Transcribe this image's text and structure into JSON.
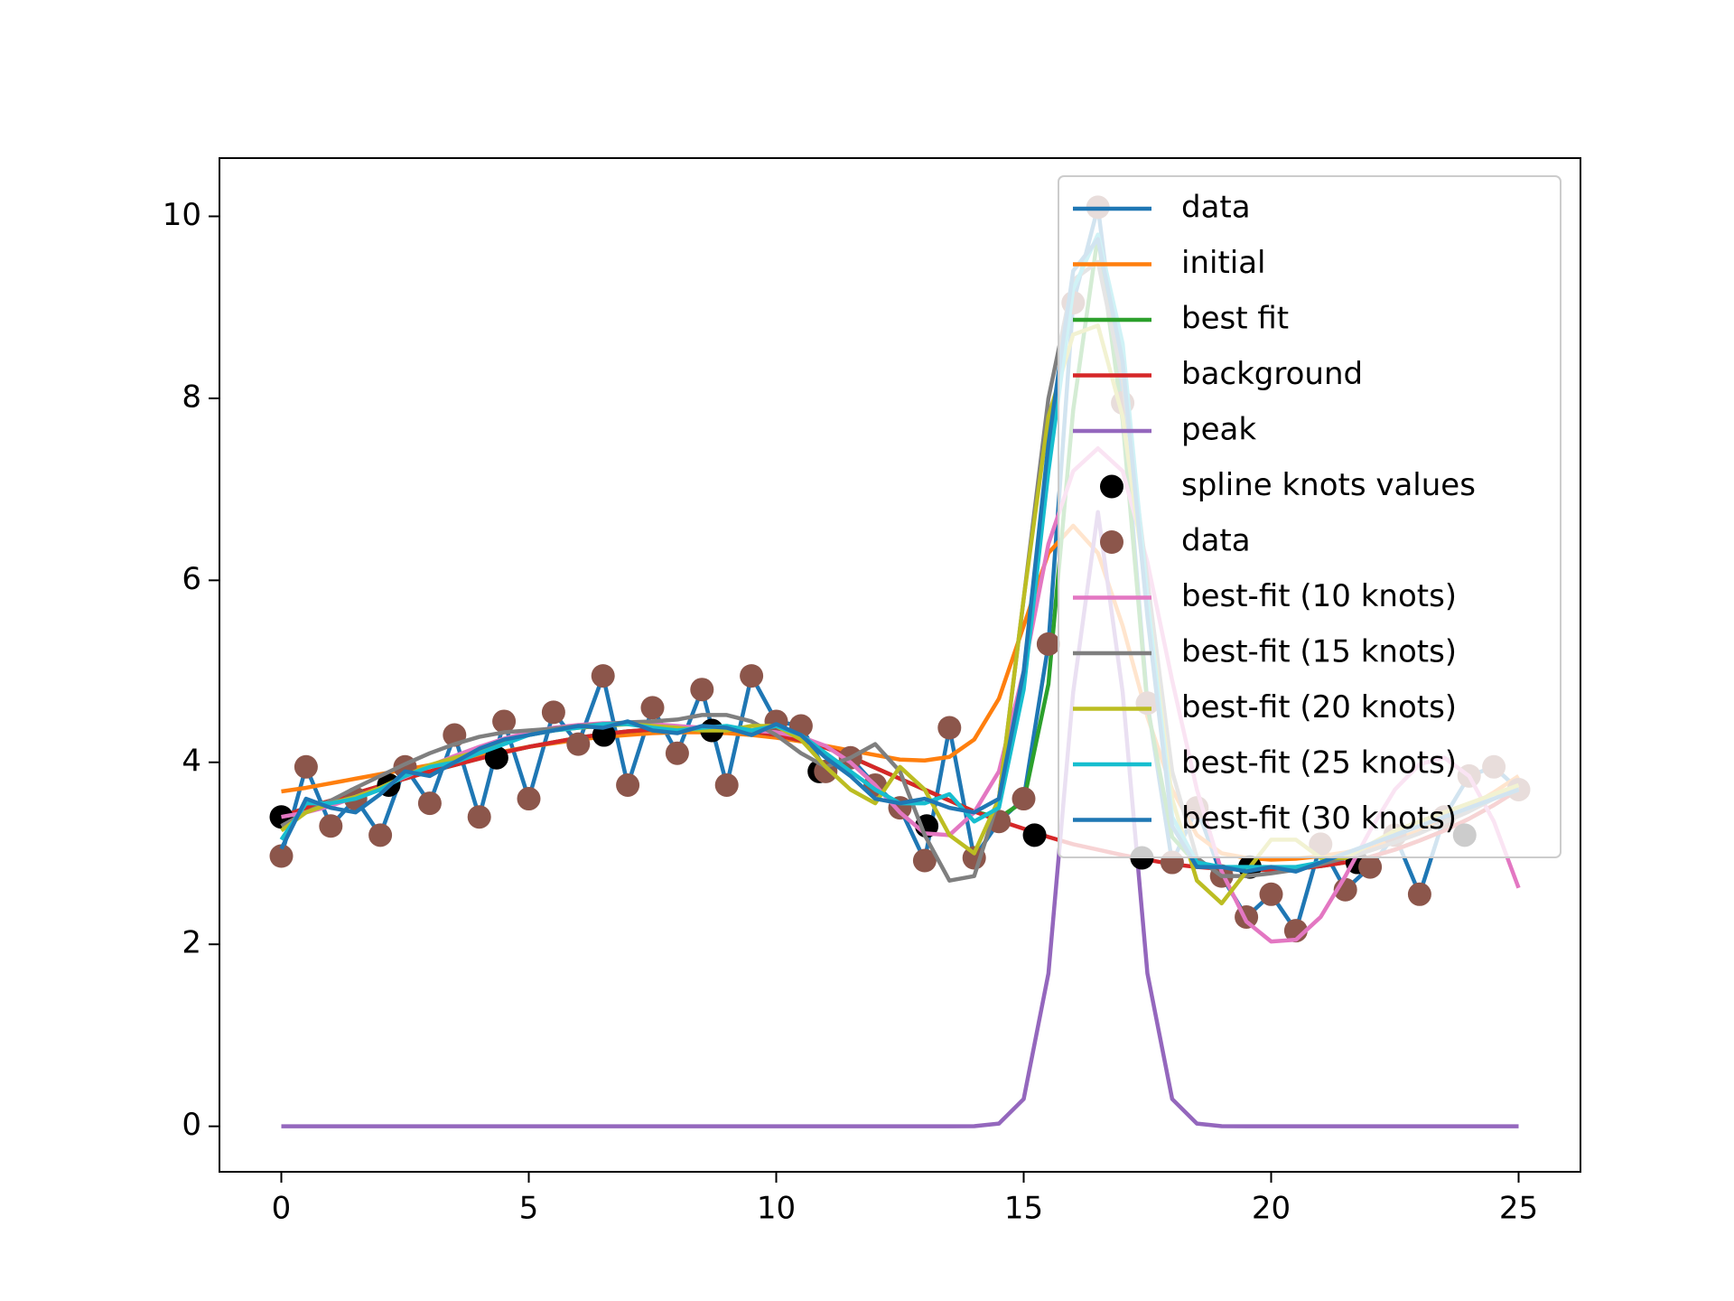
{
  "chart_data": {
    "type": "line",
    "x": [
      0,
      0.5,
      1,
      1.5,
      2,
      2.5,
      3,
      3.5,
      4,
      4.5,
      5,
      5.5,
      6,
      6.5,
      7,
      7.5,
      8,
      8.5,
      9,
      9.5,
      10,
      10.5,
      11,
      11.5,
      12,
      12.5,
      13,
      13.5,
      14,
      14.5,
      15,
      15.5,
      16,
      16.5,
      17,
      17.5,
      18,
      18.5,
      19,
      19.5,
      20,
      20.5,
      21,
      21.5,
      22,
      22.5,
      23,
      23.5,
      24,
      24.5,
      25
    ],
    "series": [
      {
        "name": "data",
        "color": "#1f77b4",
        "style": "line",
        "values": [
          2.97,
          3.95,
          3.3,
          3.6,
          3.2,
          3.95,
          3.55,
          4.3,
          3.4,
          4.45,
          3.6,
          4.55,
          4.2,
          4.95,
          3.75,
          4.6,
          4.1,
          4.8,
          3.75,
          4.95,
          4.45,
          4.4,
          3.9,
          4.05,
          3.75,
          3.5,
          2.92,
          4.38,
          2.95,
          3.35,
          3.6,
          5.3,
          9.05,
          10.1,
          7.95,
          4.65,
          2.9,
          3.5,
          2.75,
          2.3,
          2.55,
          2.15,
          3.1,
          2.6,
          2.85,
          3.2,
          2.55,
          3.4,
          3.85,
          3.95,
          3.7
        ]
      },
      {
        "name": "initial",
        "color": "#ff7f0e",
        "style": "line",
        "values": [
          3.68,
          3.72,
          3.77,
          3.82,
          3.87,
          3.92,
          3.97,
          4.02,
          4.07,
          4.12,
          4.17,
          4.21,
          4.25,
          4.28,
          4.3,
          4.32,
          4.33,
          4.33,
          4.32,
          4.3,
          4.27,
          4.23,
          4.18,
          4.13,
          4.08,
          4.03,
          4.02,
          4.06,
          4.25,
          4.7,
          5.5,
          6.3,
          6.6,
          6.3,
          5.5,
          4.5,
          3.7,
          3.2,
          3.0,
          2.95,
          2.93,
          2.94,
          2.97,
          3.01,
          3.07,
          3.15,
          3.25,
          3.37,
          3.51,
          3.67,
          3.85
        ]
      },
      {
        "name": "best fit",
        "color": "#2ca02c",
        "style": "line",
        "values": [
          3.4,
          3.5,
          3.58,
          3.66,
          3.74,
          3.82,
          3.9,
          3.97,
          4.04,
          4.11,
          4.17,
          4.22,
          4.27,
          4.31,
          4.34,
          4.36,
          4.37,
          4.37,
          4.36,
          4.34,
          4.3,
          4.24,
          4.16,
          4.06,
          3.94,
          3.82,
          3.7,
          3.58,
          3.46,
          3.39,
          3.57,
          4.86,
          7.87,
          9.79,
          7.75,
          4.61,
          3.18,
          2.88,
          2.83,
          2.82,
          2.82,
          2.83,
          2.86,
          2.9,
          2.96,
          3.04,
          3.14,
          3.25,
          3.38,
          3.53,
          3.7
        ]
      },
      {
        "name": "background",
        "color": "#d62728",
        "style": "line",
        "values": [
          3.4,
          3.5,
          3.58,
          3.66,
          3.74,
          3.82,
          3.9,
          3.97,
          4.04,
          4.11,
          4.17,
          4.22,
          4.27,
          4.31,
          4.34,
          4.36,
          4.37,
          4.37,
          4.36,
          4.34,
          4.3,
          4.24,
          4.16,
          4.06,
          3.94,
          3.82,
          3.7,
          3.58,
          3.46,
          3.36,
          3.27,
          3.18,
          3.1,
          3.04,
          2.98,
          2.93,
          2.88,
          2.85,
          2.83,
          2.82,
          2.82,
          2.83,
          2.86,
          2.9,
          2.96,
          3.04,
          3.14,
          3.25,
          3.38,
          3.53,
          3.7
        ]
      },
      {
        "name": "peak",
        "color": "#9467bd",
        "style": "line",
        "values": [
          0,
          0,
          0,
          0,
          0,
          0,
          0,
          0,
          0,
          0,
          0,
          0,
          0,
          0,
          0,
          0,
          0,
          0,
          0,
          0,
          0,
          0,
          0,
          0,
          0,
          0,
          0,
          0,
          0.001,
          0.03,
          0.3,
          1.68,
          4.77,
          6.75,
          4.77,
          1.68,
          0.3,
          0.03,
          0.001,
          0,
          0,
          0,
          0,
          0,
          0,
          0,
          0,
          0,
          0,
          0,
          0
        ]
      },
      {
        "name": "spline knots values",
        "color": "#000000",
        "style": "markers",
        "x": [
          0,
          2.17,
          4.35,
          6.52,
          8.7,
          10.87,
          13.04,
          15.22,
          17.39,
          19.57,
          21.74,
          23.91
        ],
        "values": [
          3.4,
          3.75,
          4.05,
          4.3,
          4.35,
          3.9,
          3.3,
          3.2,
          2.95,
          2.85,
          2.9,
          3.2
        ]
      },
      {
        "name": "data",
        "color": "#8c564b",
        "style": "markers",
        "values": [
          2.97,
          3.95,
          3.3,
          3.6,
          3.2,
          3.95,
          3.55,
          4.3,
          3.4,
          4.45,
          3.6,
          4.55,
          4.2,
          4.95,
          3.75,
          4.6,
          4.1,
          4.8,
          3.75,
          4.95,
          4.45,
          4.4,
          3.9,
          4.05,
          3.75,
          3.5,
          2.92,
          4.38,
          2.95,
          3.35,
          3.6,
          5.3,
          9.05,
          10.1,
          7.95,
          4.65,
          2.9,
          3.5,
          2.75,
          2.3,
          2.55,
          2.15,
          3.1,
          2.6,
          2.85,
          3.2,
          2.55,
          3.4,
          3.85,
          3.95,
          3.7
        ]
      },
      {
        "name": "best-fit (10 knots)",
        "color": "#e377c2",
        "style": "line",
        "values": [
          3.4,
          3.45,
          3.52,
          3.62,
          3.72,
          3.84,
          3.96,
          4.07,
          4.17,
          4.26,
          4.33,
          4.38,
          4.41,
          4.43,
          4.43,
          4.42,
          4.4,
          4.38,
          4.36,
          4.35,
          4.33,
          4.28,
          4.18,
          4.0,
          3.75,
          3.45,
          3.22,
          3.2,
          3.45,
          3.9,
          5.0,
          6.4,
          7.2,
          7.45,
          7.2,
          6.2,
          4.9,
          3.7,
          2.8,
          2.25,
          2.03,
          2.05,
          2.3,
          2.75,
          3.25,
          3.7,
          3.98,
          4.05,
          3.85,
          3.35,
          2.62
        ]
      },
      {
        "name": "best-fit (15 knots)",
        "color": "#7f7f7f",
        "style": "line",
        "values": [
          3.3,
          3.45,
          3.58,
          3.72,
          3.85,
          3.98,
          4.1,
          4.2,
          4.28,
          4.33,
          4.35,
          4.37,
          4.4,
          4.42,
          4.44,
          4.45,
          4.47,
          4.52,
          4.52,
          4.45,
          4.3,
          4.1,
          3.95,
          4.05,
          4.2,
          3.9,
          3.2,
          2.7,
          2.75,
          3.6,
          5.8,
          8.0,
          9.3,
          9.5,
          8.2,
          6.0,
          3.9,
          2.95,
          2.75,
          2.75,
          2.78,
          2.82,
          2.88,
          2.95,
          3.03,
          3.12,
          3.22,
          3.34,
          3.46,
          3.6,
          3.73
        ]
      },
      {
        "name": "best-fit (20 knots)",
        "color": "#bcbd22",
        "style": "line",
        "values": [
          3.25,
          3.45,
          3.55,
          3.62,
          3.72,
          3.85,
          3.97,
          4.05,
          4.12,
          4.22,
          4.3,
          4.35,
          4.38,
          4.4,
          4.42,
          4.4,
          4.38,
          4.35,
          4.35,
          4.4,
          4.4,
          4.25,
          3.95,
          3.7,
          3.55,
          3.95,
          3.7,
          3.2,
          3.0,
          3.6,
          5.8,
          7.8,
          8.7,
          8.8,
          7.8,
          5.8,
          3.6,
          2.7,
          2.45,
          2.8,
          3.15,
          3.15,
          2.95,
          2.95,
          3.1,
          3.25,
          3.35,
          3.45,
          3.55,
          3.65,
          3.75
        ]
      },
      {
        "name": "best-fit (25 knots)",
        "color": "#17becf",
        "style": "line",
        "values": [
          3.15,
          3.55,
          3.55,
          3.6,
          3.7,
          3.85,
          3.95,
          4.0,
          4.1,
          4.2,
          4.3,
          4.35,
          4.38,
          4.42,
          4.42,
          4.38,
          4.35,
          4.38,
          4.4,
          4.35,
          4.4,
          4.3,
          4.1,
          3.9,
          3.7,
          3.55,
          3.55,
          3.65,
          3.35,
          3.5,
          4.8,
          7.2,
          9.2,
          9.8,
          8.6,
          5.8,
          3.4,
          2.9,
          2.85,
          2.85,
          2.85,
          2.85,
          2.9,
          3.0,
          3.1,
          3.2,
          3.3,
          3.4,
          3.5,
          3.6,
          3.7
        ]
      },
      {
        "name": "best-fit (30 knots)",
        "color": "#1f77b4",
        "style": "line",
        "values": [
          3.05,
          3.6,
          3.5,
          3.45,
          3.65,
          3.9,
          3.85,
          4.0,
          4.15,
          4.25,
          4.3,
          4.35,
          4.4,
          4.38,
          4.45,
          4.35,
          4.32,
          4.4,
          4.38,
          4.3,
          4.42,
          4.3,
          4.05,
          3.85,
          3.6,
          3.55,
          3.6,
          3.5,
          3.45,
          3.6,
          5.0,
          7.5,
          9.4,
          9.75,
          8.4,
          5.6,
          3.3,
          2.85,
          2.85,
          2.8,
          2.85,
          2.8,
          2.9,
          3.0,
          3.1,
          3.2,
          3.3,
          3.4,
          3.5,
          3.6,
          3.7
        ]
      }
    ],
    "xlim": [
      -1.25,
      26.25
    ],
    "ylim": [
      -0.5,
      10.64
    ],
    "xticks": [
      0,
      5,
      10,
      15,
      20,
      25
    ],
    "yticks": [
      0,
      2,
      4,
      6,
      8,
      10
    ],
    "legend": "upper right"
  }
}
